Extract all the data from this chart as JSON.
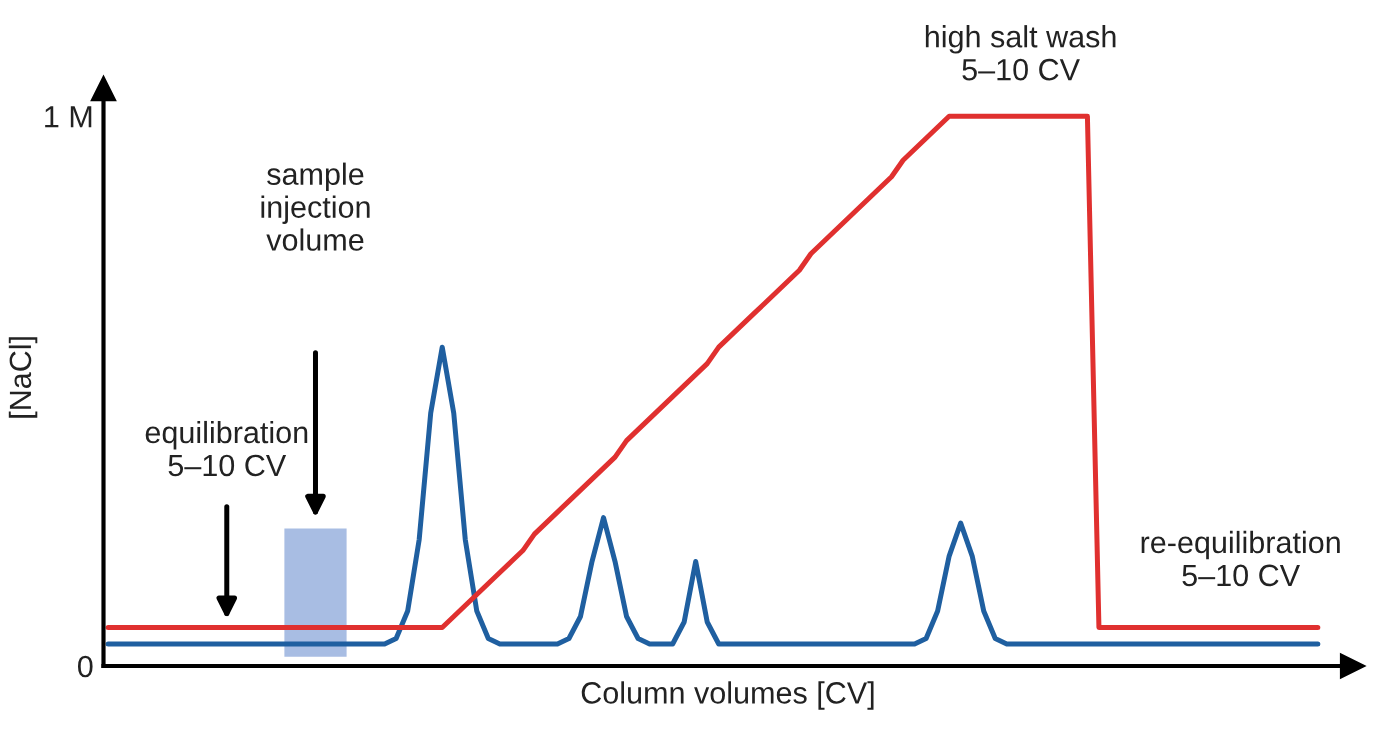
{
  "chart_data": {
    "type": "line",
    "xlabel": "Column volumes [CV]",
    "ylabel": "[NaCl]",
    "ylim": [
      0,
      1.05
    ],
    "yticks": [
      0,
      {
        "value": 1,
        "label": "1 M"
      }
    ],
    "categories": [
      null,
      null,
      null,
      null,
      null,
      null,
      null,
      null,
      null,
      null,
      null,
      null,
      null,
      null,
      null,
      null,
      null,
      null,
      null,
      null,
      null,
      null,
      null,
      null,
      null,
      null,
      null,
      null,
      null,
      null,
      null,
      null,
      null,
      null,
      null,
      null,
      null,
      null,
      null,
      null,
      null,
      null,
      null,
      null,
      null,
      null,
      null,
      null,
      null,
      null,
      null,
      null,
      null,
      null,
      null,
      null,
      null,
      null,
      null,
      null,
      null,
      null,
      null,
      null,
      null,
      null,
      null,
      null,
      null,
      null,
      null,
      null,
      null,
      null,
      null,
      null,
      null,
      null,
      null,
      null,
      null,
      null,
      null,
      null,
      null,
      null,
      null,
      null,
      null,
      null,
      null,
      null,
      null,
      null,
      null,
      null,
      null,
      null,
      null,
      null,
      null,
      null,
      null,
      null,
      null,
      null
    ],
    "series": [
      {
        "color": "#1f5fa0",
        "values": [
          0.04,
          0.04,
          0.04,
          0.04,
          0.04,
          0.04,
          0.04,
          0.04,
          0.04,
          0.04,
          0.04,
          0.04,
          0.04,
          0.04,
          0.04,
          0.04,
          0.04,
          0.04,
          0.04,
          0.04,
          0.04,
          0.04,
          0.04,
          0.04,
          0.04,
          0.05,
          0.1,
          0.23,
          0.46,
          0.58,
          0.46,
          0.23,
          0.1,
          0.05,
          0.04,
          0.04,
          0.04,
          0.04,
          0.04,
          0.04,
          0.05,
          0.09,
          0.19,
          0.27,
          0.19,
          0.09,
          0.05,
          0.04,
          0.04,
          0.04,
          0.08,
          0.19,
          0.08,
          0.04,
          0.04,
          0.04,
          0.04,
          0.04,
          0.04,
          0.04,
          0.04,
          0.04,
          0.04,
          0.04,
          0.04,
          0.04,
          0.04,
          0.04,
          0.04,
          0.04,
          0.04,
          0.05,
          0.1,
          0.2,
          0.26,
          0.2,
          0.1,
          0.05,
          0.04,
          0.04,
          0.04,
          0.04,
          0.04,
          0.04,
          0.04,
          0.04,
          0.04,
          0.04,
          0.04,
          0.04,
          0.04,
          0.04,
          0.04,
          0.04,
          0.04,
          0.04,
          0.04,
          0.04,
          0.04,
          0.04,
          0.04,
          0.04,
          0.04,
          0.04,
          0.04,
          0.04
        ]
      },
      {
        "color": "#e0302f",
        "values": [
          0.07,
          0.07,
          0.07,
          0.07,
          0.07,
          0.07,
          0.07,
          0.07,
          0.07,
          0.07,
          0.07,
          0.07,
          0.07,
          0.07,
          0.07,
          0.07,
          0.07,
          0.07,
          0.07,
          0.07,
          0.07,
          0.07,
          0.07,
          0.07,
          0.07,
          0.07,
          0.07,
          0.07,
          0.07,
          0.07,
          0.09,
          0.11,
          0.13,
          0.15,
          0.17,
          0.19,
          0.21,
          0.24,
          0.26,
          0.28,
          0.3,
          0.32,
          0.34,
          0.36,
          0.38,
          0.41,
          0.43,
          0.45,
          0.47,
          0.49,
          0.51,
          0.53,
          0.55,
          0.58,
          0.6,
          0.62,
          0.64,
          0.66,
          0.68,
          0.7,
          0.72,
          0.75,
          0.77,
          0.79,
          0.81,
          0.83,
          0.85,
          0.87,
          0.89,
          0.92,
          0.94,
          0.96,
          0.98,
          1,
          1,
          1,
          1,
          1,
          1,
          1,
          1,
          1,
          1,
          1,
          1,
          1,
          0.07,
          0.07,
          0.07,
          0.07,
          0.07,
          0.07,
          0.07,
          0.07,
          0.07,
          0.07,
          0.07,
          0.07,
          0.07,
          0.07,
          0.07,
          0.07,
          0.07,
          0.07,
          0.07,
          0.07
        ]
      }
    ],
    "annotations": [
      "equilibration\n5–10 CV",
      "sample\ninjection\nvolume",
      "high salt wash\n5–10 CV",
      "re-equilibration\n5–10 CV"
    ]
  }
}
